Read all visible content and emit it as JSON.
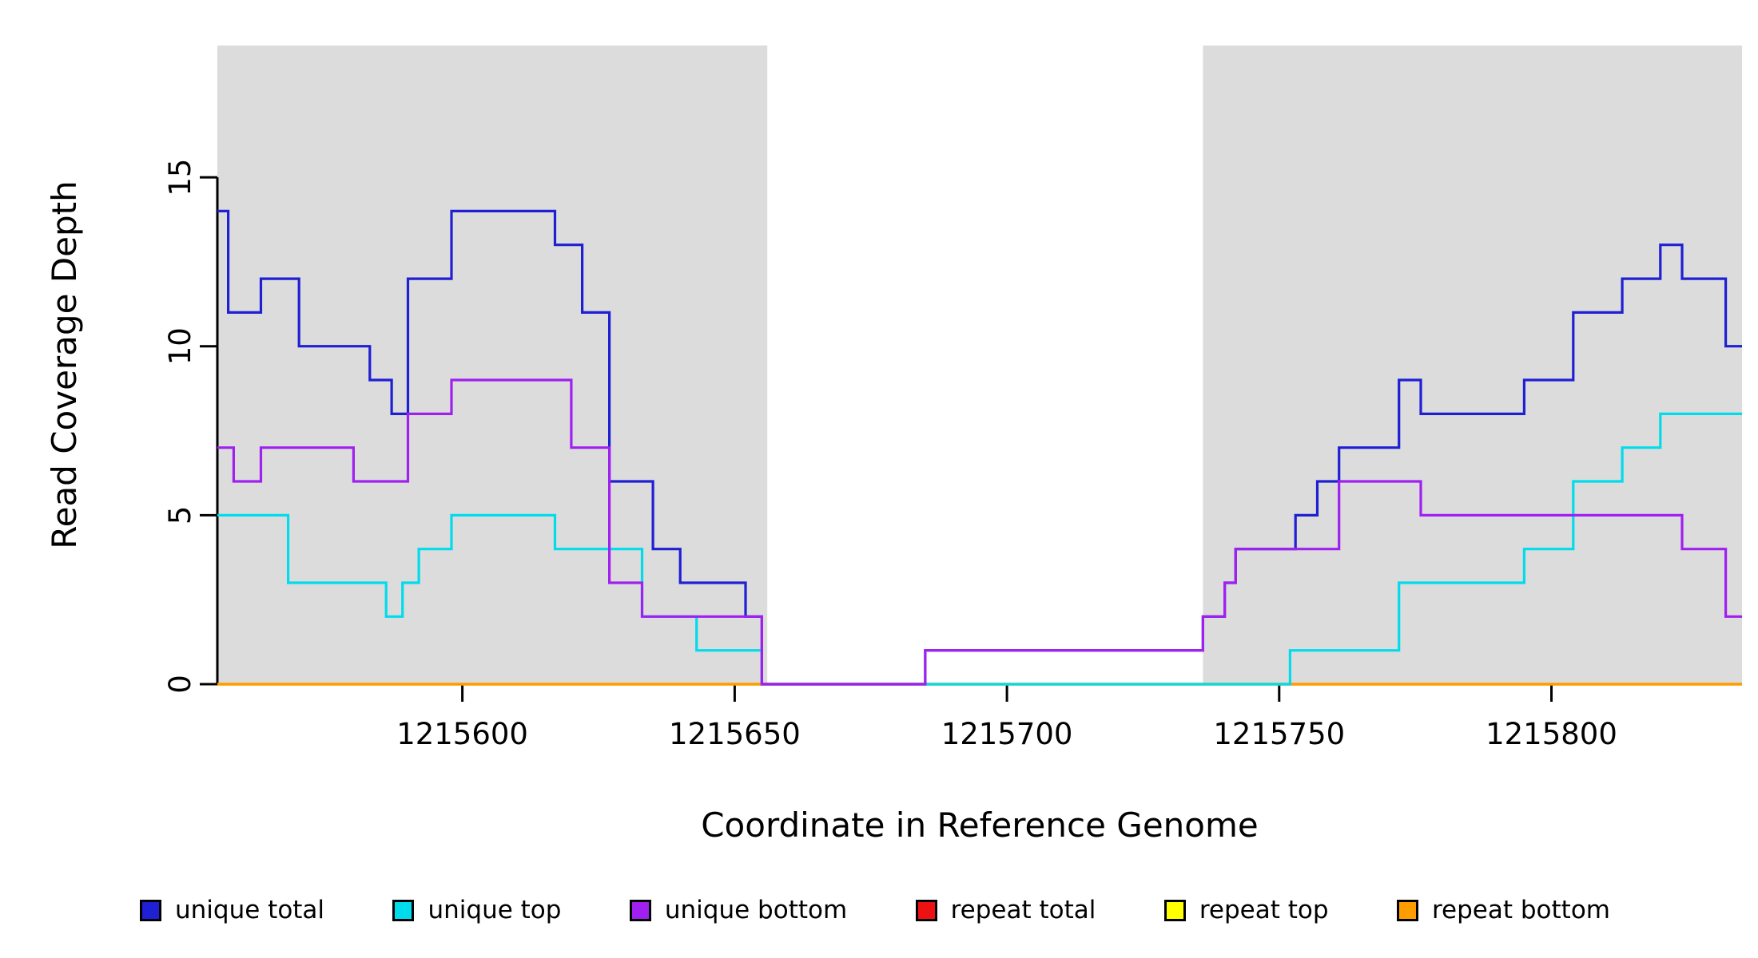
{
  "chart_data": {
    "type": "line",
    "subtype": "step",
    "title": "",
    "xlabel": "Coordinate in Reference Genome",
    "ylabel": "Read Coverage Depth",
    "xlim": [
      1215555,
      1215835
    ],
    "ylim": [
      0,
      18.9
    ],
    "xticks": [
      1215600,
      1215650,
      1215700,
      1215750,
      1215800
    ],
    "yticks": [
      0,
      5,
      10,
      15
    ],
    "grid": false,
    "legend_position": "bottom",
    "shade_color": "#DCDCDC",
    "shaded_regions": [
      {
        "x0": 1215555,
        "x1": 1215656,
        "color": "#DCDCDC"
      },
      {
        "x0": 1215736,
        "x1": 1215835,
        "color": "#DCDCDC"
      }
    ],
    "series": [
      {
        "name": "unique total",
        "color": "#1f1fd4",
        "draw_order": 4,
        "points": [
          [
            1215555,
            14
          ],
          [
            1215557,
            11
          ],
          [
            1215563,
            12
          ],
          [
            1215570,
            10
          ],
          [
            1215583,
            9
          ],
          [
            1215587,
            8
          ],
          [
            1215590,
            12
          ],
          [
            1215598,
            14
          ],
          [
            1215617,
            13
          ],
          [
            1215622,
            11
          ],
          [
            1215627,
            6
          ],
          [
            1215635,
            4
          ],
          [
            1215640,
            3
          ],
          [
            1215652,
            2
          ],
          [
            1215655,
            0
          ],
          [
            1215685,
            1
          ],
          [
            1215736,
            2
          ],
          [
            1215740,
            3
          ],
          [
            1215742,
            4
          ],
          [
            1215753,
            5
          ],
          [
            1215757,
            6
          ],
          [
            1215761,
            7
          ],
          [
            1215772,
            9
          ],
          [
            1215776,
            8
          ],
          [
            1215795,
            9
          ],
          [
            1215804,
            11
          ],
          [
            1215813,
            12
          ],
          [
            1215820,
            13
          ],
          [
            1215824,
            12
          ],
          [
            1215832,
            10
          ]
        ]
      },
      {
        "name": "unique top",
        "color": "#00dcec",
        "draw_order": 5,
        "points": [
          [
            1215555,
            5
          ],
          [
            1215568,
            3
          ],
          [
            1215586,
            2
          ],
          [
            1215589,
            3
          ],
          [
            1215592,
            4
          ],
          [
            1215598,
            5
          ],
          [
            1215617,
            4
          ],
          [
            1215633,
            2
          ],
          [
            1215643,
            1
          ],
          [
            1215655,
            0
          ],
          [
            1215752,
            1
          ],
          [
            1215772,
            3
          ],
          [
            1215795,
            4
          ],
          [
            1215804,
            6
          ],
          [
            1215813,
            7
          ],
          [
            1215820,
            8
          ]
        ]
      },
      {
        "name": "unique bottom",
        "color": "#a020f0",
        "draw_order": 6,
        "points": [
          [
            1215555,
            7
          ],
          [
            1215558,
            6
          ],
          [
            1215563,
            7
          ],
          [
            1215580,
            6
          ],
          [
            1215590,
            8
          ],
          [
            1215598,
            9
          ],
          [
            1215620,
            7
          ],
          [
            1215627,
            3
          ],
          [
            1215633,
            2
          ],
          [
            1215655,
            0
          ],
          [
            1215685,
            1
          ],
          [
            1215736,
            2
          ],
          [
            1215740,
            3
          ],
          [
            1215742,
            4
          ],
          [
            1215761,
            6
          ],
          [
            1215776,
            5
          ],
          [
            1215824,
            4
          ],
          [
            1215832,
            2
          ]
        ]
      },
      {
        "name": "repeat total",
        "color": "#ee1111",
        "draw_order": 1,
        "points": [
          [
            1215555,
            0
          ]
        ]
      },
      {
        "name": "repeat top",
        "color": "#ffff00",
        "draw_order": 2,
        "points": [
          [
            1215555,
            0
          ]
        ]
      },
      {
        "name": "repeat bottom",
        "color": "#ff9d00",
        "draw_order": 3,
        "points": [
          [
            1215555,
            0
          ]
        ]
      }
    ]
  }
}
